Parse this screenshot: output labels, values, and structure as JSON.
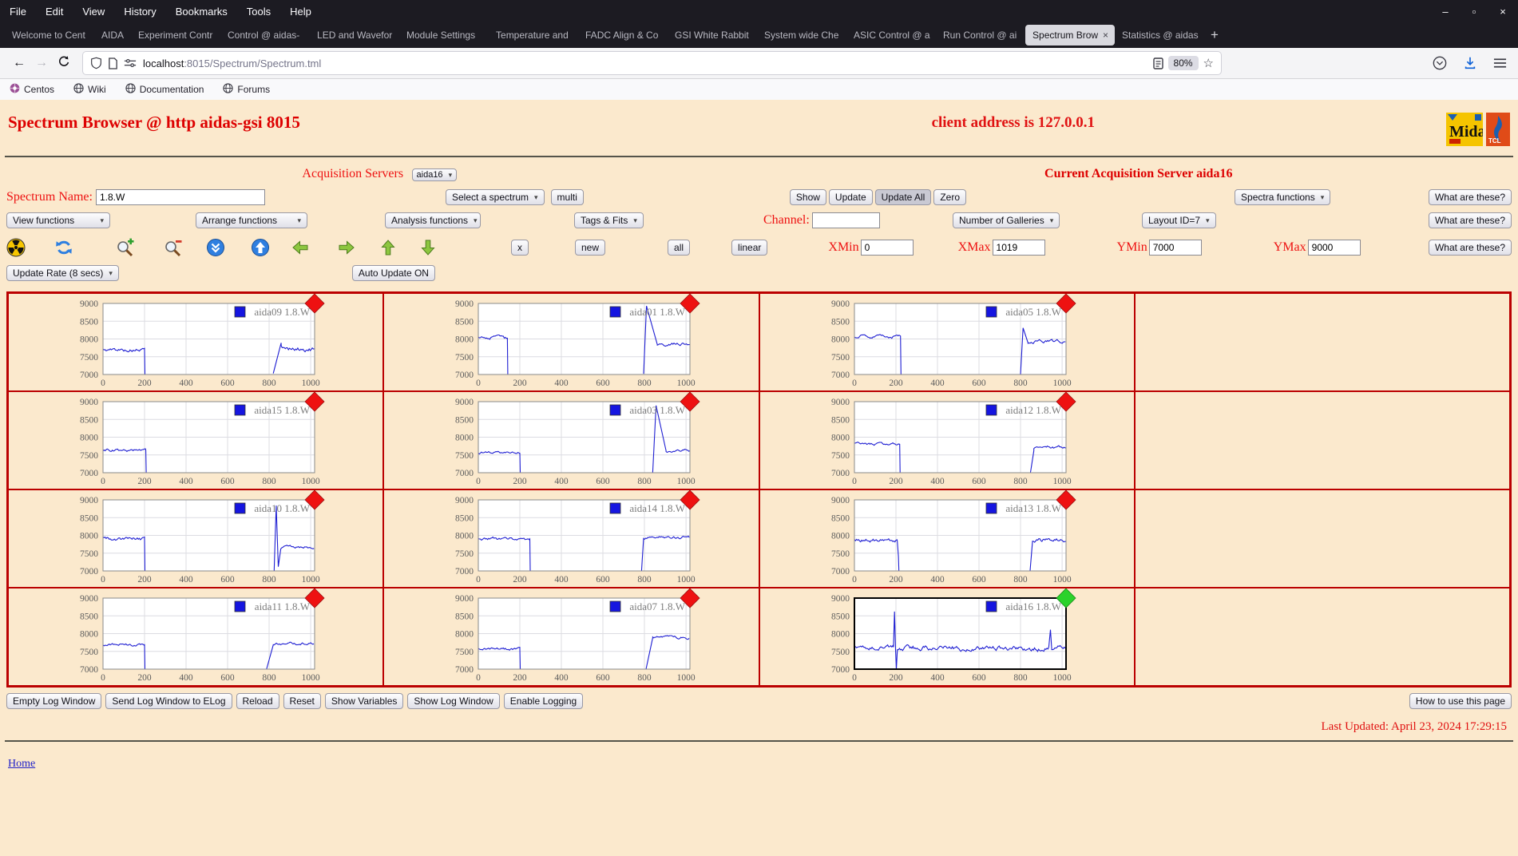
{
  "browser": {
    "menu": [
      "File",
      "Edit",
      "View",
      "History",
      "Bookmarks",
      "Tools",
      "Help"
    ],
    "window_control_icons": [
      "minimize-icon",
      "maximize-icon",
      "close-icon"
    ],
    "tabs": [
      {
        "label": "Welcome to Cent"
      },
      {
        "label": "AIDA",
        "short": true
      },
      {
        "label": "Experiment Contr"
      },
      {
        "label": "Control @ aidas-"
      },
      {
        "label": "LED and Wavefor"
      },
      {
        "label": "Module Settings"
      },
      {
        "label": "Temperature and"
      },
      {
        "label": "FADC Align & Co"
      },
      {
        "label": "GSI White Rabbit"
      },
      {
        "label": "System wide Che"
      },
      {
        "label": "ASIC Control @ a"
      },
      {
        "label": "Run Control @ ai"
      },
      {
        "label": "Spectrum Brow",
        "active": true,
        "closable": true
      },
      {
        "label": "Statistics @ aidas"
      }
    ],
    "new_tab_label": "+",
    "nav": {
      "url_host": "localhost",
      "url_path": ":8015/Spectrum/Spectrum.tml",
      "zoom_badge": "80%",
      "icon_names": [
        "back-icon",
        "forward-icon",
        "reload-icon",
        "shield-icon",
        "page-icon",
        "tuner-icon",
        "reader-icon",
        "star-icon",
        "pocket-icon",
        "download-icon",
        "hamburger-icon"
      ]
    },
    "bookmarks": [
      {
        "label": "Centos",
        "icon": "centos-icon"
      },
      {
        "label": "Wiki",
        "icon": "globe-icon"
      },
      {
        "label": "Documentation",
        "icon": "globe-icon"
      },
      {
        "label": "Forums",
        "icon": "globe-icon"
      }
    ]
  },
  "page": {
    "header": {
      "title": "Spectrum Browser @ http aidas-gsi 8015",
      "client": "client address is 127.0.0.1",
      "midas_logo_text": "Midas",
      "tcl_logo_text": "TCL"
    },
    "acquisition": {
      "label": "Acquisition Servers",
      "server": "aida16",
      "current": "Current Acquisition Server aida16"
    },
    "controls": {
      "spectrum_name_label": "Spectrum Name:",
      "spectrum_name_value": "1.8.W",
      "select_spectrum": "Select a spectrum",
      "multi": "multi",
      "show_buttons": [
        "Show",
        "Update",
        "Update All",
        "Zero"
      ],
      "pressed_button": "Update All",
      "spectra_functions": "Spectra functions",
      "what_are_these": "What are these?",
      "view_functions": "View functions",
      "arrange_functions": "Arrange functions",
      "analysis_functions": "Analysis functions",
      "tags_fits": "Tags & Fits",
      "channel_label": "Channel:",
      "channel_value": "",
      "number_of_galleries": "Number of Galleries",
      "layout_id": "Layout ID=7",
      "small_buttons": [
        "x",
        "new",
        "all",
        "linear"
      ],
      "xmin_label": "XMin",
      "xmin_value": "0",
      "xmax_label": "XMax",
      "xmax_value": "1019",
      "ymin_label": "YMin",
      "ymin_value": "7000",
      "ymax_label": "YMax",
      "ymax_value": "9000",
      "update_rate": "Update Rate (8 secs)",
      "auto_update": "Auto Update ON",
      "icon_names": [
        "radiation-icon",
        "refresh-icon",
        "zoom-in-icon",
        "zoom-out-icon",
        "pack-down-icon",
        "pack-up-icon",
        "arrow-left-icon",
        "arrow-right-icon",
        "arrow-up-icon",
        "arrow-down-icon"
      ]
    },
    "footer": {
      "buttons": [
        "Empty Log Window",
        "Send Log Window to ELog",
        "Reload",
        "Reset",
        "Show Variables",
        "Show Log Window",
        "Enable Logging"
      ],
      "how_to": "How to use this page",
      "last_updated": "Last Updated: April 23, 2024 17:29:15",
      "home": "Home"
    }
  },
  "chart_data": {
    "type": "line",
    "xlim": [
      0,
      1019
    ],
    "ylim": [
      7000,
      9000
    ],
    "x_ticks": [
      0,
      200,
      400,
      600,
      800,
      1000
    ],
    "y_ticks": [
      7000,
      7500,
      8000,
      8500,
      9000
    ],
    "grid": true,
    "legend_position": "top-right",
    "line_color": "#1e1ed2",
    "marker_colors": {
      "red": "#ee1111",
      "green": "#2bd22b"
    },
    "grid_border_color": "#bb0000",
    "columns": 4,
    "rows": 4,
    "plots": [
      {
        "name": "aida09",
        "legend": "aida09 1.8.W",
        "marker": "red",
        "selected": false,
        "segments": [
          {
            "t": "n",
            "x0": 0,
            "x1": 200,
            "y": 7690,
            "a": 130
          },
          {
            "t": "l",
            "x0": 200,
            "x1": 202,
            "y0": 7690,
            "y1": 7000
          },
          {
            "t": "l",
            "x0": 820,
            "x1": 858,
            "y0": 7030,
            "y1": 7890
          },
          {
            "t": "n",
            "x0": 858,
            "x1": 1019,
            "y": 7710,
            "a": 170
          }
        ]
      },
      {
        "name": "aida01",
        "legend": "aida01 1.8.W",
        "marker": "red",
        "selected": false,
        "segments": [
          {
            "t": "n",
            "x0": 0,
            "x1": 140,
            "y": 8010,
            "a": 170
          },
          {
            "t": "l",
            "x0": 140,
            "x1": 142,
            "y0": 8010,
            "y1": 7000
          },
          {
            "t": "l",
            "x0": 796,
            "x1": 810,
            "y0": 7020,
            "y1": 8930
          },
          {
            "t": "l",
            "x0": 810,
            "x1": 862,
            "y0": 8930,
            "y1": 7840
          },
          {
            "t": "n",
            "x0": 862,
            "x1": 1019,
            "y": 7850,
            "a": 120
          }
        ]
      },
      {
        "name": "aida05",
        "legend": "aida05 1.8.W",
        "marker": "red",
        "selected": false,
        "segments": [
          {
            "t": "n",
            "x0": 0,
            "x1": 222,
            "y": 8080,
            "a": 120
          },
          {
            "t": "l",
            "x0": 222,
            "x1": 224,
            "y0": 8080,
            "y1": 7000
          },
          {
            "t": "l",
            "x0": 800,
            "x1": 812,
            "y0": 7010,
            "y1": 8310
          },
          {
            "t": "l",
            "x0": 812,
            "x1": 836,
            "y0": 8310,
            "y1": 7890
          },
          {
            "t": "n",
            "x0": 836,
            "x1": 1019,
            "y": 7920,
            "a": 120
          }
        ]
      },
      {
        "name": "aida15",
        "legend": "aida15 1.8.W",
        "marker": "red",
        "selected": false,
        "segments": [
          {
            "t": "n",
            "x0": 0,
            "x1": 206,
            "y": 7620,
            "a": 110
          },
          {
            "t": "l",
            "x0": 206,
            "x1": 208,
            "y0": 7620,
            "y1": 7000
          }
        ]
      },
      {
        "name": "aida03",
        "legend": "aida03 1.8.W",
        "marker": "red",
        "selected": false,
        "segments": [
          {
            "t": "n",
            "x0": 0,
            "x1": 200,
            "y": 7560,
            "a": 90
          },
          {
            "t": "l",
            "x0": 200,
            "x1": 202,
            "y0": 7560,
            "y1": 7000
          },
          {
            "t": "l",
            "x0": 840,
            "x1": 856,
            "y0": 7010,
            "y1": 8890
          },
          {
            "t": "l",
            "x0": 856,
            "x1": 904,
            "y0": 8890,
            "y1": 7620
          },
          {
            "t": "n",
            "x0": 904,
            "x1": 1019,
            "y": 7620,
            "a": 100
          }
        ]
      },
      {
        "name": "aida12",
        "legend": "aida12 1.8.W",
        "marker": "red",
        "selected": false,
        "segments": [
          {
            "t": "n",
            "x0": 0,
            "x1": 218,
            "y": 7800,
            "a": 100
          },
          {
            "t": "l",
            "x0": 218,
            "x1": 220,
            "y0": 7800,
            "y1": 7000
          },
          {
            "t": "l",
            "x0": 848,
            "x1": 864,
            "y0": 7010,
            "y1": 7620
          },
          {
            "t": "n",
            "x0": 864,
            "x1": 1019,
            "y": 7770,
            "a": 150
          }
        ]
      },
      {
        "name": "aida10",
        "legend": "aida10 1.8.W",
        "marker": "red",
        "selected": false,
        "segments": [
          {
            "t": "n",
            "x0": 0,
            "x1": 200,
            "y": 7900,
            "a": 130
          },
          {
            "t": "l",
            "x0": 200,
            "x1": 202,
            "y0": 7900,
            "y1": 7000
          },
          {
            "t": "l",
            "x0": 824,
            "x1": 834,
            "y0": 7000,
            "y1": 8840
          },
          {
            "t": "l",
            "x0": 834,
            "x1": 844,
            "y0": 8840,
            "y1": 7120
          },
          {
            "t": "l",
            "x0": 844,
            "x1": 856,
            "y0": 7120,
            "y1": 7620
          },
          {
            "t": "n",
            "x0": 856,
            "x1": 1019,
            "y": 7650,
            "a": 120
          }
        ]
      },
      {
        "name": "aida14",
        "legend": "aida14 1.8.W",
        "marker": "red",
        "selected": false,
        "segments": [
          {
            "t": "n",
            "x0": 0,
            "x1": 248,
            "y": 7900,
            "a": 120
          },
          {
            "t": "l",
            "x0": 248,
            "x1": 250,
            "y0": 7900,
            "y1": 7000
          },
          {
            "t": "l",
            "x0": 786,
            "x1": 796,
            "y0": 7000,
            "y1": 7930
          },
          {
            "t": "n",
            "x0": 796,
            "x1": 1019,
            "y": 7950,
            "a": 110
          }
        ]
      },
      {
        "name": "aida13",
        "legend": "aida13 1.8.W",
        "marker": "red",
        "selected": false,
        "segments": [
          {
            "t": "n",
            "x0": 0,
            "x1": 206,
            "y": 7860,
            "a": 140
          },
          {
            "t": "l",
            "x0": 206,
            "x1": 212,
            "y0": 7860,
            "y1": 7410
          },
          {
            "t": "l",
            "x0": 212,
            "x1": 214,
            "y0": 7410,
            "y1": 7000
          },
          {
            "t": "l",
            "x0": 846,
            "x1": 858,
            "y0": 7010,
            "y1": 7850
          },
          {
            "t": "n",
            "x0": 858,
            "x1": 1019,
            "y": 7860,
            "a": 160
          }
        ]
      },
      {
        "name": "aida11",
        "legend": "aida11 1.8.W",
        "marker": "red",
        "selected": false,
        "segments": [
          {
            "t": "n",
            "x0": 0,
            "x1": 200,
            "y": 7700,
            "a": 100
          },
          {
            "t": "l",
            "x0": 200,
            "x1": 202,
            "y0": 7700,
            "y1": 7000
          },
          {
            "t": "l",
            "x0": 788,
            "x1": 820,
            "y0": 7010,
            "y1": 7680
          },
          {
            "t": "n",
            "x0": 820,
            "x1": 1019,
            "y": 7720,
            "a": 100
          }
        ]
      },
      {
        "name": "aida07",
        "legend": "aida07 1.8.W",
        "marker": "red",
        "selected": false,
        "segments": [
          {
            "t": "n",
            "x0": 0,
            "x1": 200,
            "y": 7560,
            "a": 90
          },
          {
            "t": "l",
            "x0": 200,
            "x1": 202,
            "y0": 7560,
            "y1": 7000
          },
          {
            "t": "l",
            "x0": 808,
            "x1": 840,
            "y0": 7010,
            "y1": 7880
          },
          {
            "t": "n",
            "x0": 840,
            "x1": 1019,
            "y": 7890,
            "a": 100
          }
        ]
      },
      {
        "name": "aida16",
        "legend": "aida16 1.8.W",
        "marker": "green",
        "selected": true,
        "segments": [
          {
            "t": "n",
            "x0": 0,
            "x1": 188,
            "y": 7620,
            "a": 150
          },
          {
            "t": "l",
            "x0": 188,
            "x1": 193,
            "y0": 7620,
            "y1": 8620
          },
          {
            "t": "l",
            "x0": 193,
            "x1": 198,
            "y0": 8620,
            "y1": 7550
          },
          {
            "t": "l",
            "x0": 198,
            "x1": 202,
            "y0": 7550,
            "y1": 7000
          },
          {
            "t": "l",
            "x0": 202,
            "x1": 207,
            "y0": 7000,
            "y1": 7560
          },
          {
            "t": "n",
            "x0": 207,
            "x1": 936,
            "y": 7600,
            "a": 190
          },
          {
            "t": "l",
            "x0": 936,
            "x1": 944,
            "y0": 7620,
            "y1": 8110
          },
          {
            "t": "l",
            "x0": 944,
            "x1": 950,
            "y0": 8110,
            "y1": 7560
          },
          {
            "t": "n",
            "x0": 950,
            "x1": 1019,
            "y": 7640,
            "a": 160
          }
        ]
      }
    ]
  }
}
